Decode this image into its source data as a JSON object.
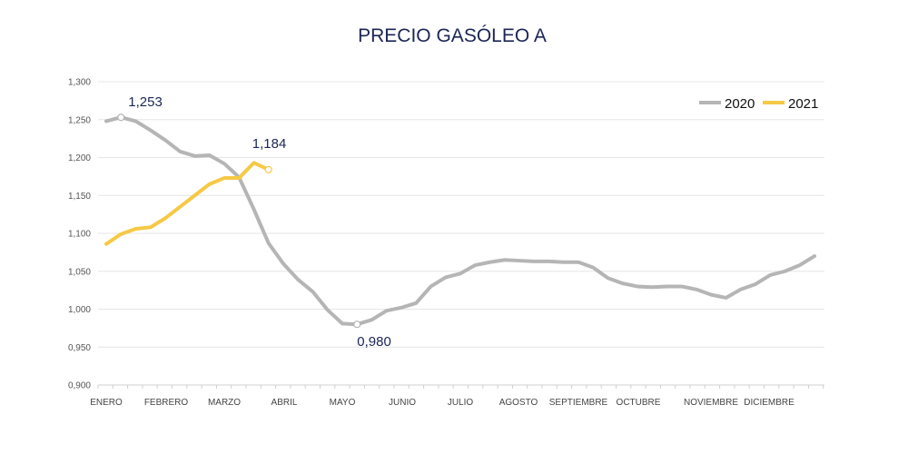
{
  "chart_data": {
    "type": "line",
    "title": "PRECIO GASÓLEO A",
    "xlabel": "",
    "ylabel": "",
    "ylim": [
      0.9,
      1.3
    ],
    "yticks": [
      "0,900",
      "0,950",
      "1,000",
      "1,050",
      "1,100",
      "1,150",
      "1,200",
      "1,250",
      "1,300"
    ],
    "ytick_values": [
      0.9,
      0.95,
      1.0,
      1.05,
      1.1,
      1.15,
      1.2,
      1.25,
      1.3
    ],
    "month_labels": [
      "ENERO",
      "FEBRERO",
      "MARZO",
      "ABRIL",
      "MAYO",
      "JUNIO",
      "JULIO",
      "AGOSTO",
      "SEPTIEMBRE",
      "OCTUBRE",
      "NOVIEMBRE",
      "DICIEMBRE"
    ],
    "grid": true,
    "legend_position": "top-right",
    "series": [
      {
        "name": "2020",
        "color": "#b5b5b5",
        "values": [
          1.248,
          1.253,
          1.248,
          1.236,
          1.223,
          1.208,
          1.202,
          1.203,
          1.192,
          1.174,
          1.132,
          1.087,
          1.06,
          1.039,
          1.023,
          0.999,
          0.981,
          0.98,
          0.986,
          0.998,
          1.002,
          1.008,
          1.03,
          1.042,
          1.047,
          1.058,
          1.062,
          1.065,
          1.064,
          1.063,
          1.063,
          1.062,
          1.062,
          1.055,
          1.041,
          1.034,
          1.03,
          1.029,
          1.03,
          1.03,
          1.026,
          1.019,
          1.015,
          1.026,
          1.033,
          1.045,
          1.05,
          1.058,
          1.07
        ]
      },
      {
        "name": "2021",
        "color": "#f6c945",
        "values": [
          1.086,
          1.099,
          1.106,
          1.108,
          1.12,
          1.135,
          1.15,
          1.165,
          1.173,
          1.173,
          1.193,
          1.184
        ]
      }
    ],
    "annotations": [
      {
        "series": "2020",
        "index": 1,
        "text": "1,253"
      },
      {
        "series": "2020",
        "index": 17,
        "text": "0,980"
      },
      {
        "series": "2021",
        "index": 11,
        "text": "1,184"
      }
    ]
  }
}
